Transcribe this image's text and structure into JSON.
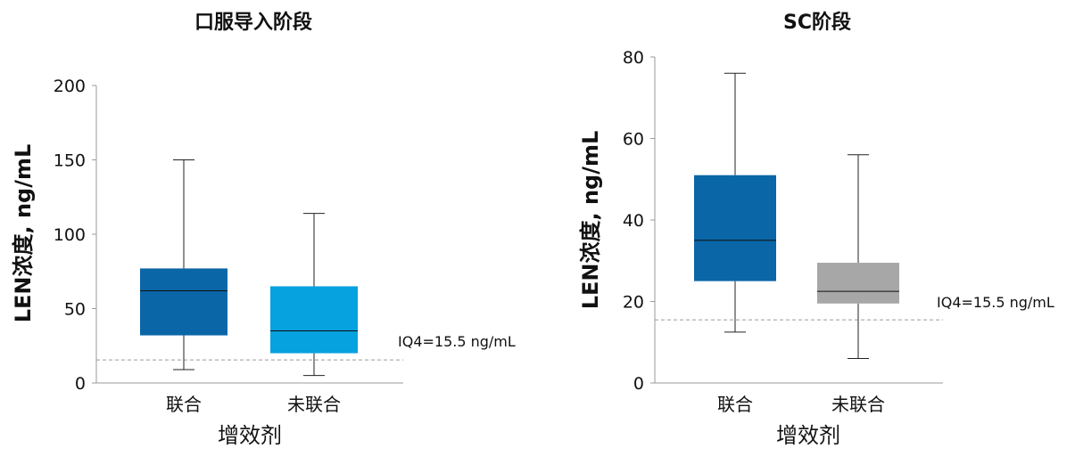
{
  "chart_data": [
    {
      "type": "box",
      "title": "口服导入阶段",
      "ylabel": "LEN浓度, ng/mL",
      "xlabel": "增效剂",
      "ylim": [
        0,
        200
      ],
      "yticks": [
        0,
        50,
        100,
        150,
        200
      ],
      "grid": false,
      "categories": [
        "联合",
        "未联合"
      ],
      "boxes": [
        {
          "category": "联合",
          "whisker_low": 9,
          "q1": 32,
          "median": 62,
          "q3": 77,
          "whisker_high": 150,
          "color": "#0a66a6"
        },
        {
          "category": "未联合",
          "whisker_low": 5,
          "q1": 20,
          "median": 35,
          "q3": 65,
          "whisker_high": 114,
          "color": "#06a1df"
        }
      ],
      "reference_line": {
        "value": 15.5,
        "label": "IQ4=15.5 ng/mL",
        "style": "dashed",
        "color": "#9a9a9a"
      }
    },
    {
      "type": "box",
      "title": "SC阶段",
      "ylabel": "LEN浓度, ng/mL",
      "xlabel": "增效剂",
      "ylim": [
        0,
        80
      ],
      "yticks": [
        0,
        20,
        40,
        60,
        80
      ],
      "grid": false,
      "categories": [
        "联合",
        "未联合"
      ],
      "boxes": [
        {
          "category": "联合",
          "whisker_low": 12.5,
          "q1": 25,
          "median": 35,
          "q3": 51,
          "whisker_high": 76,
          "color": "#0a66a6"
        },
        {
          "category": "未联合",
          "whisker_low": 6,
          "q1": 19.5,
          "median": 22.5,
          "q3": 29.5,
          "whisker_high": 56,
          "color": "#a7a7a7"
        }
      ],
      "reference_line": {
        "value": 15.5,
        "label": "IQ4=15.5 ng/mL",
        "style": "dashed",
        "color": "#9a9a9a"
      }
    }
  ]
}
